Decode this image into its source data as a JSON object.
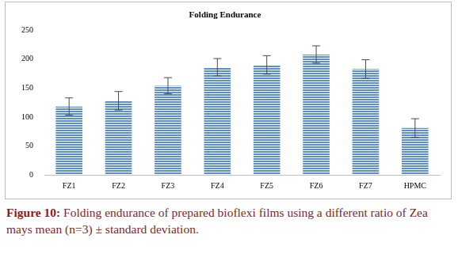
{
  "chart_data": {
    "type": "bar",
    "title": "Folding Endurance",
    "caption": "Figure 10: Folding endurance of prepared bioflexi films using a different ratio of Zea mays mean (n=3) ± standard deviation.",
    "categories": [
      "FZ1",
      "FZ2",
      "FZ3",
      "FZ4",
      "FZ5",
      "FZ6",
      "FZ7",
      "HPMC"
    ],
    "values": [
      118,
      128,
      154,
      186,
      190,
      208,
      183,
      81
    ],
    "errors": [
      15,
      16,
      14,
      15,
      16,
      15,
      16,
      16
    ],
    "color": "#5b8fd0",
    "ylim": [
      0,
      250
    ],
    "yticks": [
      0,
      50,
      100,
      150,
      200,
      250
    ],
    "grid": false
  }
}
